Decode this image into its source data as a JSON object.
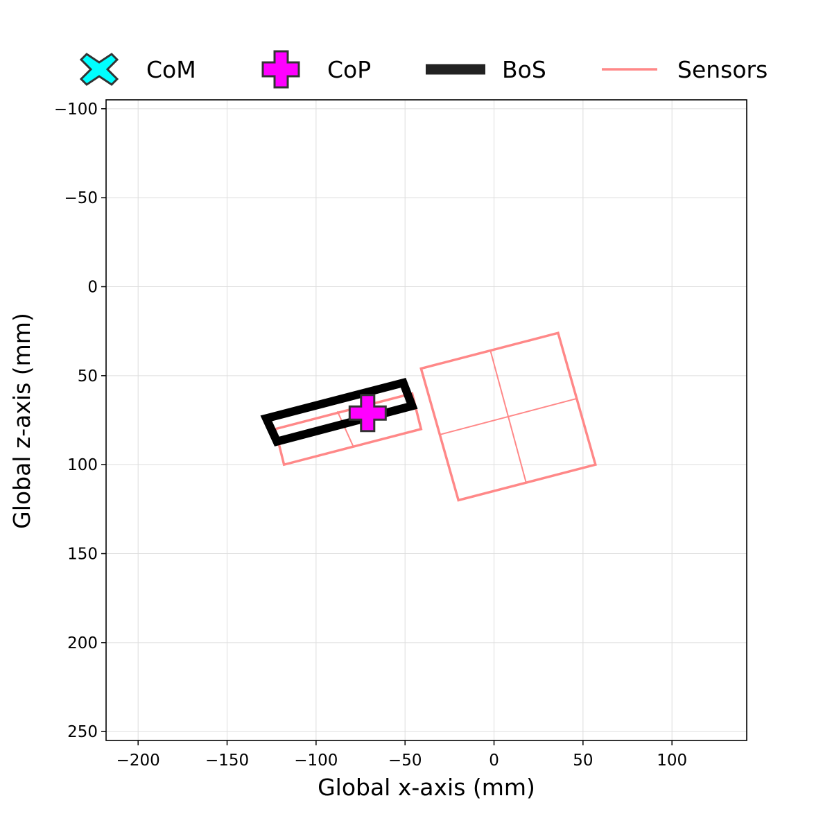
{
  "chart_data": {
    "type": "scatter",
    "xlabel": "Global x-axis (mm)",
    "ylabel": "Global z-axis (mm)",
    "xlim": [
      -218,
      142
    ],
    "ylim": [
      255,
      -105
    ],
    "y_inverted": true,
    "grid": true,
    "legend_placement": "top",
    "x_ticks": [
      -200,
      -150,
      -100,
      -50,
      0,
      50,
      100
    ],
    "x_tick_labels": [
      "−200",
      "−150",
      "−100",
      "−50",
      "0",
      "50",
      "100"
    ],
    "y_ticks": [
      -100,
      -50,
      0,
      50,
      100,
      150,
      200,
      250
    ],
    "y_tick_labels": [
      "−100",
      "−50",
      "0",
      "50",
      "100",
      "150",
      "200",
      "250"
    ],
    "legend": [
      {
        "key": "com",
        "label": "CoM",
        "color": "#00ffff",
        "marker": "x-marker-icon"
      },
      {
        "key": "cop",
        "label": "CoP",
        "color": "#ff00ff",
        "marker": "plus-marker-icon"
      },
      {
        "key": "bos",
        "label": "BoS",
        "color": "#222222",
        "marker": "thick-line-icon"
      },
      {
        "key": "sensors",
        "label": "Sensors",
        "color": "#ff8888",
        "marker": "line-icon"
      }
    ],
    "series": [
      {
        "name": "Sensors",
        "color": "#ff8888",
        "sensors": [
          {
            "outline": [
              [
                -41,
                80
              ],
              [
                -46,
                60
              ],
              [
                -123,
                80
              ],
              [
                -118,
                100
              ]
            ],
            "dividers": [
              [
                [
                  -88,
                  70
                ],
                [
                  -79,
                  90
                ]
              ]
            ]
          },
          {
            "outline": [
              [
                -41,
                46
              ],
              [
                36,
                26
              ],
              [
                57,
                100
              ],
              [
                -20,
                120
              ]
            ],
            "dividers": [
              [
                [
                  -2,
                  36
                ],
                [
                  18,
                  110
                ]
              ],
              [
                [
                  -30,
                  83
                ],
                [
                  46,
                  63
                ]
              ]
            ]
          }
        ]
      },
      {
        "name": "BoS",
        "color": "#000000",
        "polygon": [
          [
            -128,
            74
          ],
          [
            -51,
            54
          ],
          [
            -46,
            67
          ],
          [
            -122,
            87
          ]
        ]
      },
      {
        "name": "CoP",
        "color": "#ff00ff",
        "points": [
          [
            -71,
            71
          ]
        ]
      }
    ]
  }
}
